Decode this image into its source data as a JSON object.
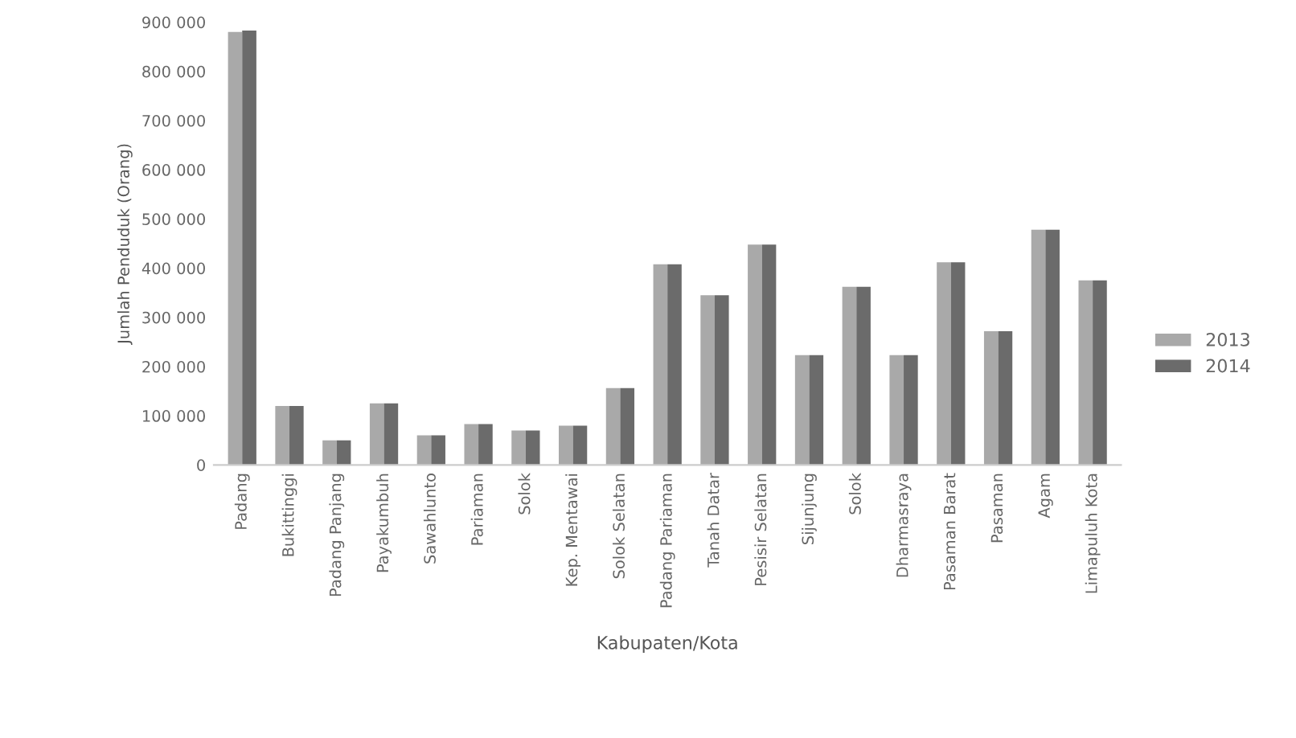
{
  "chart_data": {
    "type": "bar",
    "xlabel": "Kabupaten/Kota",
    "ylabel": "Jumlah Penduduk (Orang)",
    "categories": [
      "Padang",
      "Bukittinggi",
      "Padang Panjang",
      "Payakumbuh",
      "Sawahlunto",
      "Pariaman",
      "Solok",
      "Kep. Mentawai",
      "Solok Selatan",
      "Padang Pariaman",
      "Tanah Datar",
      "Pesisir Selatan",
      "Sijunjung",
      "Solok",
      "Dharmasraya",
      "Pasaman Barat",
      "Pasaman",
      "Agam",
      "Limapuluh Kota"
    ],
    "series": [
      {
        "name": "2013",
        "color": "#a9a9a9",
        "values": [
          880000,
          120000,
          50000,
          125000,
          60000,
          83000,
          70000,
          80000,
          156000,
          408000,
          345000,
          448000,
          223000,
          362000,
          223000,
          412000,
          272000,
          478000,
          375000
        ]
      },
      {
        "name": "2014",
        "color": "#6b6b6b",
        "values": [
          883000,
          120000,
          50000,
          125000,
          60000,
          83000,
          70000,
          80000,
          156000,
          408000,
          345000,
          448000,
          223000,
          362000,
          223000,
          412000,
          272000,
          478000,
          375000
        ]
      }
    ],
    "ylim": [
      0,
      900000
    ],
    "yticks": [
      0,
      {
        "value": 100000,
        "label": "100 000"
      },
      {
        "value": 200000,
        "label": "200 000"
      },
      {
        "value": 300000,
        "label": "300 000"
      },
      {
        "value": 400000,
        "label": "400 000"
      },
      {
        "value": 500000,
        "label": "500 000"
      },
      {
        "value": 600000,
        "label": "600 000"
      },
      {
        "value": 700000,
        "label": "700 000"
      },
      {
        "value": 800000,
        "label": "800 000"
      },
      {
        "value": 900000,
        "label": "900 000"
      }
    ],
    "legend": "right"
  }
}
